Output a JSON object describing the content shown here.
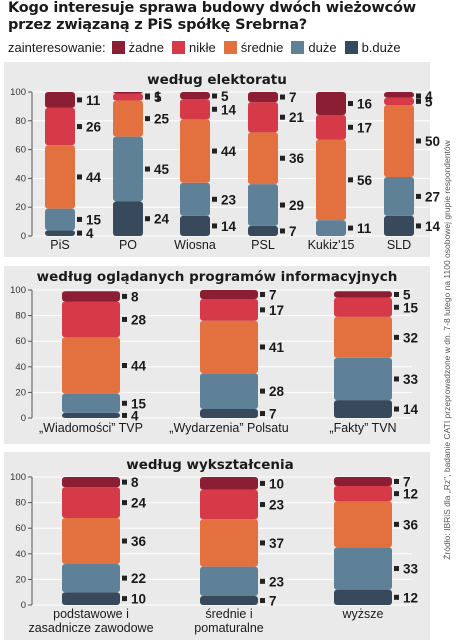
{
  "title": "Kogo interesuje sprawa budowy dwóch wieżowców przez związaną z PiS spółkę Srebrna?",
  "legend": {
    "lead": "zainteresowanie:",
    "items": [
      {
        "label": "żadne",
        "color": "#8b1e32"
      },
      {
        "label": "nikłe",
        "color": "#d63a48"
      },
      {
        "label": "średnie",
        "color": "#e3703f"
      },
      {
        "label": "duże",
        "color": "#5e8198"
      },
      {
        "label": "b.duże",
        "color": "#37495a"
      }
    ]
  },
  "source_note": "Źródło: IBRiS dla „Rz\", badanie CATI przeprowadzone w dn. 7-8 lutego na 1100 osobowej grupie respondentów",
  "chart_data": [
    {
      "type": "bar",
      "stacked": true,
      "title": "według elektoratu",
      "categories": [
        "PiS",
        "PO",
        "Wiosna",
        "PSL",
        "Kukiz'15",
        "SLD"
      ],
      "ylim": [
        0,
        100
      ],
      "yticks": [
        0,
        20,
        40,
        60,
        80,
        100
      ],
      "series": [
        {
          "name": "b.duże",
          "values": [
            4,
            24,
            14,
            7,
            0,
            14
          ]
        },
        {
          "name": "duże",
          "values": [
            15,
            45,
            23,
            29,
            11,
            27
          ]
        },
        {
          "name": "średnie",
          "values": [
            44,
            25,
            44,
            36,
            56,
            50
          ]
        },
        {
          "name": "nikłe",
          "values": [
            26,
            5,
            14,
            21,
            17,
            5
          ]
        },
        {
          "name": "żadne",
          "values": [
            11,
            1,
            5,
            7,
            16,
            4
          ]
        }
      ]
    },
    {
      "type": "bar",
      "stacked": true,
      "title": "według oglądanych programów informacyjnych",
      "categories": [
        "„Wiadomości” TVP",
        "„Wydarzenia” Polsatu",
        "„Fakty” TVN"
      ],
      "ylim": [
        0,
        100
      ],
      "yticks": [
        0,
        20,
        40,
        60,
        80,
        100
      ],
      "series": [
        {
          "name": "b.duże",
          "values": [
            4,
            7,
            14
          ]
        },
        {
          "name": "duże",
          "values": [
            15,
            28,
            33
          ]
        },
        {
          "name": "średnie",
          "values": [
            44,
            41,
            32
          ]
        },
        {
          "name": "nikłe",
          "values": [
            28,
            17,
            15
          ]
        },
        {
          "name": "żadne",
          "values": [
            8,
            7,
            5
          ]
        }
      ]
    },
    {
      "type": "bar",
      "stacked": true,
      "title": "według wykształcenia",
      "categories": [
        "podstawowe i zasadnicze zawodowe",
        "średnie i pomaturalne",
        "wyższe"
      ],
      "ylim": [
        0,
        100
      ],
      "yticks": [
        0,
        20,
        40,
        60,
        80,
        100
      ],
      "series": [
        {
          "name": "b.duże",
          "values": [
            10,
            7,
            12
          ]
        },
        {
          "name": "duże",
          "values": [
            22,
            23,
            33
          ]
        },
        {
          "name": "średnie",
          "values": [
            36,
            37,
            36
          ]
        },
        {
          "name": "nikłe",
          "values": [
            24,
            23,
            12
          ]
        },
        {
          "name": "żadne",
          "values": [
            8,
            10,
            7
          ]
        }
      ]
    }
  ]
}
